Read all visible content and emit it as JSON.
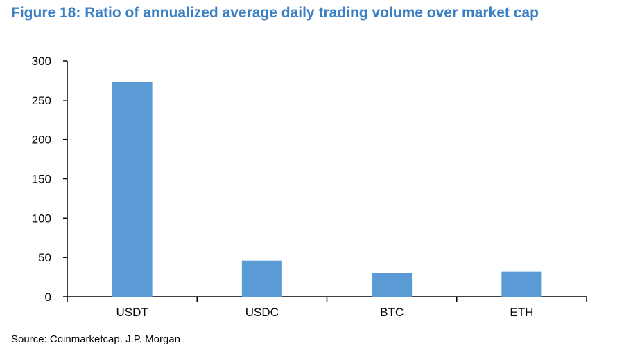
{
  "title": "Figure 18: Ratio of annualized average daily trading volume over market cap",
  "source": "Source: Coinmarketcap. J.P. Morgan",
  "colors": {
    "title": "#3a7fc4",
    "bar": "#5b9bd5",
    "axis": "#000000"
  },
  "chart_data": {
    "type": "bar",
    "title": "Figure 18: Ratio of annualized average daily trading volume over market cap",
    "xlabel": "",
    "ylabel": "",
    "categories": [
      "USDT",
      "USDC",
      "BTC",
      "ETH"
    ],
    "values": [
      273,
      46,
      30,
      32
    ],
    "ylim": [
      0,
      300
    ],
    "yticks": [
      0,
      50,
      100,
      150,
      200,
      250,
      300
    ],
    "grid": false,
    "legend": "none"
  }
}
